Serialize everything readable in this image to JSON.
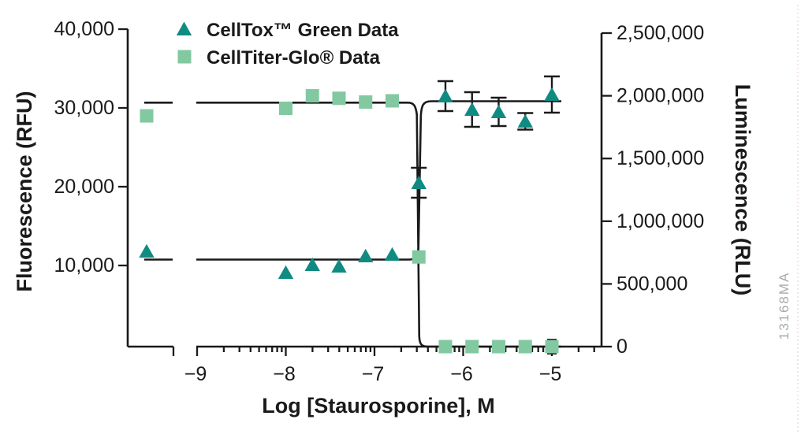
{
  "figure": {
    "watermark": "13168MA",
    "background": "#ffffff"
  },
  "chart_data": {
    "type": "scatter",
    "title": "",
    "xlabel": "Log [Staurosporine], M",
    "x_scale": "log10",
    "x_axis_break_before_first_tick": true,
    "control_points_left_of_break": true,
    "x_ticks": [
      -9,
      -8,
      -7,
      -6,
      -5
    ],
    "x_tick_labels": [
      "−9",
      "−8",
      "−7",
      "−6",
      "−5"
    ],
    "grid": false,
    "curve_color": "#1a1a1a",
    "legend_position": "top-left inside plot",
    "axes": {
      "left": {
        "label": "Fluorescence (RFU)",
        "ticks": [
          10000,
          20000,
          30000,
          40000
        ],
        "tick_labels": [
          "10,000",
          "20,000",
          "30,000",
          "40,000"
        ],
        "range": [
          0,
          40000
        ]
      },
      "right": {
        "label": "Luminescence (RLU)",
        "ticks": [
          0,
          500000,
          1000000,
          1500000,
          2000000,
          2500000
        ],
        "tick_labels": [
          "0",
          "500,000",
          "1,000,000",
          "1,500,000",
          "2,000,000",
          "2,500,000"
        ],
        "range": [
          0,
          2500000
        ]
      }
    },
    "series": [
      {
        "name": "CellTox™ Green Data",
        "marker": "triangle",
        "color": "#108B82",
        "axis": "left",
        "points": [
          {
            "x": "control",
            "y": 11800
          },
          {
            "x": -8.0,
            "y": 9100
          },
          {
            "x": -7.7,
            "y": 10100
          },
          {
            "x": -7.4,
            "y": 9900
          },
          {
            "x": -7.1,
            "y": 11200
          },
          {
            "x": -6.8,
            "y": 11400
          },
          {
            "x": -6.5,
            "y": 20500,
            "err": 1900
          },
          {
            "x": -6.2,
            "y": 31500,
            "err": 1900
          },
          {
            "x": -5.9,
            "y": 29800,
            "err": 2200
          },
          {
            "x": -5.6,
            "y": 29500,
            "err": 1800
          },
          {
            "x": -5.3,
            "y": 28300,
            "err": 1050
          },
          {
            "x": -5.0,
            "y": 31700,
            "err": 2300
          }
        ]
      },
      {
        "name": "CellTiter-Glo® Data",
        "marker": "square",
        "color": "#82C9A1",
        "axis": "right",
        "points": [
          {
            "x": "control",
            "y": 1840000
          },
          {
            "x": -8.0,
            "y": 1900000
          },
          {
            "x": -7.7,
            "y": 2000000
          },
          {
            "x": -7.4,
            "y": 1980000
          },
          {
            "x": -7.1,
            "y": 1950000
          },
          {
            "x": -6.8,
            "y": 1960000
          },
          {
            "x": -6.5,
            "y": 715000
          },
          {
            "x": -6.2,
            "y": 0
          },
          {
            "x": -5.9,
            "y": 0
          },
          {
            "x": -5.6,
            "y": 0
          },
          {
            "x": -5.3,
            "y": 0
          },
          {
            "x": -5.0,
            "y": 0,
            "err": 55000
          }
        ]
      }
    ],
    "fit_curves": [
      {
        "series": "CellTox™ Green Data",
        "direction": "rising",
        "lower_plateau": 10750,
        "upper_plateau": 30850,
        "transition_log_x": -6.5
      },
      {
        "series": "CellTiter-Glo® Data",
        "direction": "falling",
        "upper_plateau": 1945000,
        "lower_plateau": 0,
        "transition_log_x": -6.5
      }
    ]
  }
}
